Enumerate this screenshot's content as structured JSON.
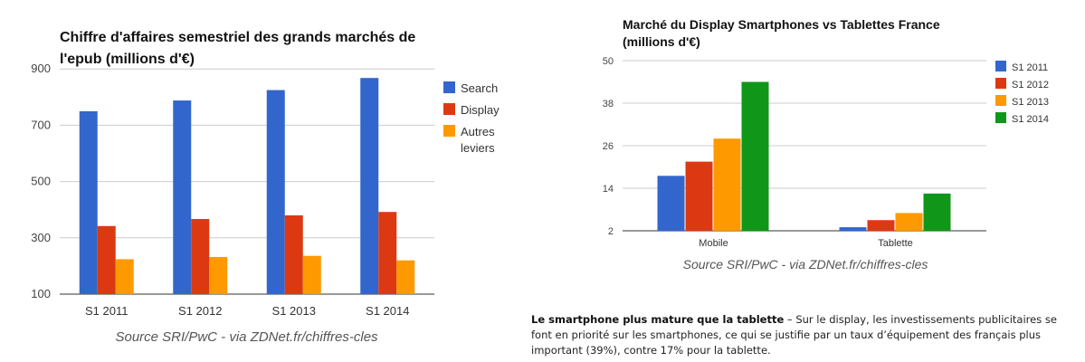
{
  "chart_data": [
    {
      "type": "bar",
      "title": "Chiffre d'affaires semestriel des grands marchés de l'epub (millions d'€)",
      "categories": [
        "S1 2011",
        "S1 2012",
        "S1 2013",
        "S1 2014"
      ],
      "series": [
        {
          "name": "Search",
          "values": [
            750,
            788,
            825,
            868
          ],
          "color": "#3366cc"
        },
        {
          "name": "Display",
          "values": [
            342,
            367,
            380,
            392
          ],
          "color": "#dc3912"
        },
        {
          "name": "Autres leviers",
          "values": [
            224,
            232,
            236,
            220
          ],
          "color": "#ff9900"
        }
      ],
      "ylim": [
        100,
        920
      ],
      "yticks": [
        "900",
        "700",
        "500",
        "300",
        "100"
      ],
      "grid": true,
      "legend": "right",
      "source": "Source SRI/PwC - via ZDNet.fr/chiffres-cles"
    },
    {
      "type": "bar",
      "title": "Marché du Display Smartphones vs Tablettes France (millions d'€)",
      "categories": [
        "Mobile",
        "Tablette"
      ],
      "series": [
        {
          "name": "S1 2011",
          "values": [
            17.5,
            3.0
          ],
          "color": "#3366cc"
        },
        {
          "name": "S1 2012",
          "values": [
            21.5,
            5.0
          ],
          "color": "#dc3912"
        },
        {
          "name": "S1 2013",
          "values": [
            28.0,
            7.0
          ],
          "color": "#ff9900"
        },
        {
          "name": "S1 2014",
          "values": [
            44.0,
            12.5
          ],
          "color": "#109618"
        }
      ],
      "ylim": [
        2,
        50
      ],
      "yticks": [
        "50",
        "38",
        "26",
        "14",
        "2"
      ],
      "grid": true,
      "legend": "right",
      "source": "Source SRI/PwC - via ZDNet.fr/chiffres-cles"
    }
  ],
  "paragraph": {
    "bold": "Le smartphone plus mature que la tablette",
    "text": " – Sur le display, les investissements publicitaires se font en priorité sur les smartphones, ce qui se justifie par un taux d’équipement des français plus important (39%), contre 17% pour la tablette."
  }
}
